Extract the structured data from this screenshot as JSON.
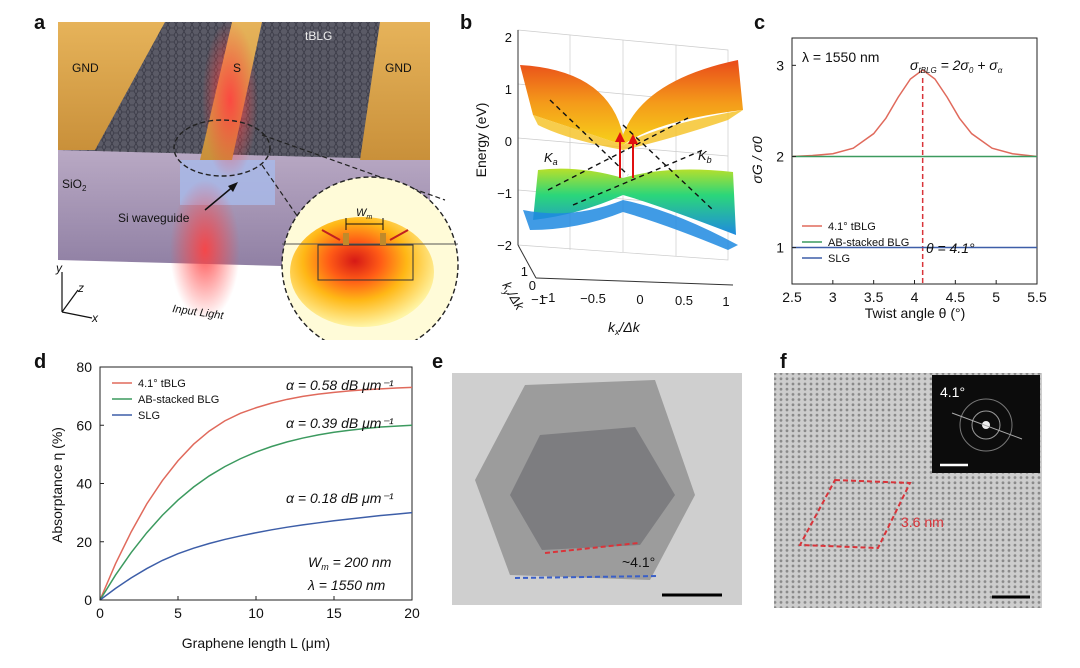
{
  "panels": {
    "a": {
      "letter": "a",
      "gnd_left": "GND",
      "signal": "S",
      "gnd_right": "GND",
      "material": "tBLG",
      "substrate": "SiO",
      "substrate_sub": "2",
      "waveguide": "Si waveguide",
      "input": "Input Light",
      "axis_x": "x",
      "axis_y": "y",
      "axis_z": "z",
      "width_label": "W",
      "width_sub": "m"
    },
    "b": {
      "letter": "b",
      "ylabel": "Energy (eV)",
      "xlabel": "k",
      "xlabel_sub": "x",
      "xlabel_tail": "/Δk",
      "ylabel2": "k",
      "ylabel2_sub": "y",
      "ylabel2_tail": "/Δk",
      "k_a": "K",
      "k_a_sub": "a",
      "k_b": "K",
      "k_b_sub": "b",
      "energy_ticks": [
        "2",
        "1",
        "0",
        "−1",
        "−2"
      ],
      "kx_ticks": [
        "−1",
        "−0.5",
        "0",
        "0.5",
        "1"
      ],
      "ky_ticks": [
        "1",
        "0",
        "−1"
      ]
    },
    "c": {
      "letter": "c",
      "lambda_label": "λ = 1550 nm",
      "equation": "σ",
      "eq_sub": "tBLG",
      "eq_rest": " = 2σ",
      "eq_sub0": "0",
      "eq_plus": " + σ",
      "eq_suba": "α",
      "theta_label": "θ = 4.1°"
    },
    "d": {
      "letter": "d",
      "alpha1": "α = 0.58 dB μm⁻¹",
      "alpha2": "α = 0.39 dB μm⁻¹",
      "alpha3": "α = 0.18 dB μm⁻¹",
      "wm_label": "W",
      "wm_sub": "m",
      "wm_val": " = 200 nm",
      "lambda_label": "λ = 1550 nm"
    },
    "e": {
      "letter": "e",
      "angle": "~4.1°"
    },
    "f": {
      "letter": "f",
      "inset_angle": "4.1°",
      "period": "3.6 nm"
    }
  },
  "colors": {
    "tblg": "#e06a5c",
    "ab": "#3c9a5f",
    "slg": "#3d5ea8",
    "dashed_red": "#d9343a",
    "dashed_blue": "#3a5fc8"
  },
  "chart_data": [
    {
      "type": "line",
      "title": "",
      "xlabel": "Twist angle θ (°)",
      "ylabel": "σG / σ0",
      "xlim": [
        2.5,
        5.5
      ],
      "ylim": [
        0.6,
        3.3
      ],
      "x_ticks": [
        2.5,
        3,
        3.5,
        4,
        4.5,
        5,
        5.5
      ],
      "y_ticks": [
        1,
        2,
        3
      ],
      "x": [
        2.5,
        2.75,
        3,
        3.25,
        3.5,
        3.65,
        3.8,
        3.95,
        4.1,
        4.25,
        4.4,
        4.55,
        4.7,
        4.95,
        5.2,
        5.5
      ],
      "series": [
        {
          "name": "4.1° tBLG",
          "values": [
            2.0,
            2.01,
            2.03,
            2.09,
            2.25,
            2.42,
            2.65,
            2.85,
            2.95,
            2.85,
            2.65,
            2.42,
            2.25,
            2.09,
            2.03,
            2.0
          ]
        },
        {
          "name": "AB-stacked BLG",
          "values": [
            2.0,
            2.0,
            2.0,
            2.0,
            2.0,
            2.0,
            2.0,
            2.0,
            2.0,
            2.0,
            2.0,
            2.0,
            2.0,
            2.0,
            2.0,
            2.0
          ]
        },
        {
          "name": "SLG",
          "values": [
            1.0,
            1.0,
            1.0,
            1.0,
            1.0,
            1.0,
            1.0,
            1.0,
            1.0,
            1.0,
            1.0,
            1.0,
            1.0,
            1.0,
            1.0,
            1.0
          ]
        }
      ],
      "marker_x": 4.1
    },
    {
      "type": "line",
      "title": "",
      "xlabel": "Graphene length L (μm)",
      "ylabel": "Absorptance η (%)",
      "xlim": [
        0,
        20
      ],
      "ylim": [
        0,
        80
      ],
      "x_ticks": [
        0,
        5,
        10,
        15,
        20
      ],
      "y_ticks": [
        0,
        20,
        40,
        60,
        80
      ],
      "x": [
        0,
        1,
        2,
        3,
        4,
        5,
        6,
        7,
        8,
        9,
        10,
        11,
        12,
        13,
        14,
        15,
        16,
        17,
        18,
        19,
        20
      ],
      "series": [
        {
          "name": "4.1° tBLG",
          "values": [
            0,
            12.5,
            23.4,
            33.0,
            41.0,
            47.8,
            53.5,
            58.0,
            61.5,
            64.1,
            66.0,
            67.6,
            68.9,
            69.9,
            70.7,
            71.3,
            71.8,
            72.2,
            72.5,
            72.8,
            73.0
          ]
        },
        {
          "name": "AB-stacked BLG",
          "values": [
            0,
            8.6,
            16.3,
            23.1,
            29.1,
            34.3,
            38.8,
            42.6,
            45.8,
            48.5,
            50.8,
            52.7,
            54.3,
            55.6,
            56.7,
            57.6,
            58.3,
            58.9,
            59.4,
            59.7,
            60.0
          ]
        },
        {
          "name": "SLG",
          "values": [
            0,
            4.0,
            7.6,
            10.8,
            13.6,
            15.9,
            17.8,
            19.4,
            20.8,
            22.0,
            23.1,
            24.1,
            25.0,
            25.8,
            26.5,
            27.2,
            27.8,
            28.4,
            29.0,
            29.5,
            30.0
          ]
        }
      ]
    }
  ]
}
